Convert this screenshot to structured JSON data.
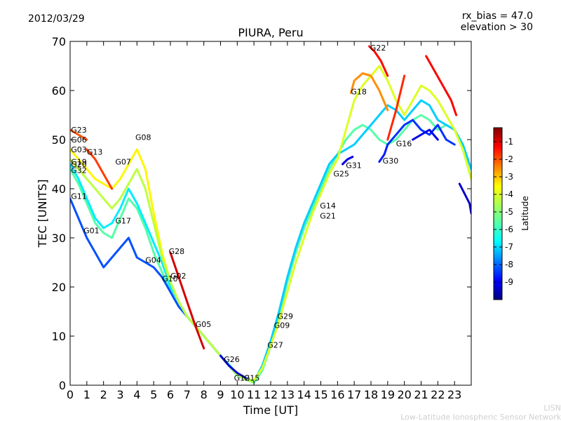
{
  "header": {
    "date": "2012/03/29",
    "rx_bias": "rx_bias = 47.0",
    "elevation": "elevation > 30"
  },
  "watermark": {
    "line1": "LISN",
    "line2": "Low-Latitude Ionospheric Sensor Network"
  },
  "chart_data": {
    "type": "scatter",
    "title": "PIURA, Peru",
    "xlabel": "Time [UT]",
    "ylabel": "TEC [UNITS]",
    "xlim": [
      0,
      24
    ],
    "ylim": [
      0,
      70
    ],
    "x_ticks": [
      "0",
      "1",
      "2",
      "3",
      "4",
      "5",
      "6",
      "7",
      "8",
      "9",
      "10",
      "11",
      "12",
      "13",
      "14",
      "15",
      "16",
      "17",
      "18",
      "19",
      "20",
      "21",
      "22",
      "23"
    ],
    "y_ticks": [
      "0",
      "10",
      "20",
      "30",
      "40",
      "50",
      "60",
      "70"
    ],
    "colorbar": {
      "label": "Latitude",
      "range": [
        -10,
        -0.2
      ],
      "ticks": [
        "-1",
        "-2",
        "-3",
        "-4",
        "-5",
        "-6",
        "-7",
        "-8",
        "-9"
      ],
      "colormap": [
        "#00007f",
        "#0000ff",
        "#007fff",
        "#00ffff",
        "#7fff7f",
        "#ffff00",
        "#ff7f00",
        "#ff0000",
        "#7f0000"
      ]
    },
    "satellite_labels": [
      {
        "name": "G23",
        "x": 0.05,
        "y": 52
      },
      {
        "name": "G06",
        "x": 0.05,
        "y": 50
      },
      {
        "name": "G03",
        "x": 0.05,
        "y": 48
      },
      {
        "name": "G13",
        "x": 1.0,
        "y": 47.5
      },
      {
        "name": "G19",
        "x": 0.05,
        "y": 45.5
      },
      {
        "name": "G20",
        "x": 0.05,
        "y": 45
      },
      {
        "name": "G32",
        "x": 0.05,
        "y": 43.8
      },
      {
        "name": "G11",
        "x": 0.05,
        "y": 38.5
      },
      {
        "name": "G01",
        "x": 0.8,
        "y": 31.5
      },
      {
        "name": "G07",
        "x": 2.7,
        "y": 45.5
      },
      {
        "name": "G08",
        "x": 3.9,
        "y": 50.5
      },
      {
        "name": "G17",
        "x": 2.7,
        "y": 33.5
      },
      {
        "name": "G04",
        "x": 4.5,
        "y": 25.5
      },
      {
        "name": "G28",
        "x": 5.9,
        "y": 27.3
      },
      {
        "name": "G02",
        "x": 6.0,
        "y": 22.3
      },
      {
        "name": "G10",
        "x": 5.5,
        "y": 21.7
      },
      {
        "name": "G05",
        "x": 7.5,
        "y": 12.4
      },
      {
        "name": "G26",
        "x": 9.2,
        "y": 5.3
      },
      {
        "name": "G12",
        "x": 9.8,
        "y": 1.5
      },
      {
        "name": "G15",
        "x": 10.4,
        "y": 1.5
      },
      {
        "name": "G27",
        "x": 11.8,
        "y": 8.2
      },
      {
        "name": "G09",
        "x": 12.2,
        "y": 12.2
      },
      {
        "name": "G29",
        "x": 12.4,
        "y": 14.1
      },
      {
        "name": "G21",
        "x": 14.95,
        "y": 34.5
      },
      {
        "name": "G14",
        "x": 14.95,
        "y": 36.6
      },
      {
        "name": "G25",
        "x": 15.75,
        "y": 43.1
      },
      {
        "name": "G31",
        "x": 16.5,
        "y": 44.8
      },
      {
        "name": "G18",
        "x": 16.8,
        "y": 59.8
      },
      {
        "name": "G22",
        "x": 17.95,
        "y": 68.7
      },
      {
        "name": "G30",
        "x": 18.7,
        "y": 45.7
      },
      {
        "name": "G16",
        "x": 19.5,
        "y": 49.2
      }
    ],
    "series": [
      {
        "lat": -5.5,
        "x": [
          0,
          0.5,
          1,
          1.5,
          2,
          2.5,
          3,
          3.5,
          4,
          4.5,
          5,
          5.5,
          6,
          6.5,
          7,
          7.5,
          8,
          8.5,
          9,
          9.5,
          10,
          10.5,
          11
        ],
        "y": [
          44,
          41,
          37,
          33,
          31,
          30,
          34,
          38,
          36,
          32,
          27,
          23,
          19,
          16,
          14,
          12,
          10,
          8,
          6,
          4,
          2,
          1.2,
          0.5
        ]
      },
      {
        "lat": -3.8,
        "x": [
          0,
          0.5,
          1,
          1.5,
          2,
          2.5,
          3,
          3.5,
          4,
          4.5,
          5,
          5.5,
          6,
          6.5,
          7,
          7.5,
          8,
          8.5,
          9,
          9.5,
          10,
          10.5,
          11
        ],
        "y": [
          48,
          46,
          44,
          42,
          41,
          40,
          42,
          45,
          48,
          44,
          35,
          27,
          21,
          17,
          14,
          12,
          10,
          8,
          6,
          4,
          2.5,
          1.5,
          0.8
        ]
      },
      {
        "lat": -8.0,
        "x": [
          0,
          0.5,
          1,
          1.5,
          2,
          2.5,
          3,
          3.5,
          4,
          4.5,
          5,
          5.5,
          6,
          6.5,
          7,
          7.5,
          8,
          8.5,
          9,
          9.5,
          10,
          10.5,
          11
        ],
        "y": [
          38,
          34,
          30,
          27,
          24,
          26,
          28,
          30,
          26,
          25,
          24,
          22,
          19,
          16,
          14,
          12,
          10,
          8,
          6,
          4,
          2.2,
          1.4,
          0.6
        ]
      },
      {
        "lat": -6.5,
        "x": [
          0,
          0.5,
          1,
          1.5,
          2,
          2.5,
          3,
          3.5,
          4,
          4.5,
          5,
          5.5,
          6,
          6.5,
          7,
          7.5,
          8,
          8.5,
          9,
          9.5,
          10,
          10.5,
          11
        ],
        "y": [
          45,
          42,
          38,
          34,
          32,
          33,
          36,
          40,
          37,
          33,
          29,
          25,
          20,
          17,
          14,
          12,
          10,
          8,
          6,
          4.2,
          2.3,
          1.3,
          0.7
        ]
      },
      {
        "lat": -4.5,
        "x": [
          0,
          0.5,
          1,
          1.5,
          2,
          2.5,
          3,
          3.5,
          4,
          4.5,
          5,
          5.5,
          6,
          6.5,
          7,
          7.5,
          8,
          8.5,
          9,
          9.5,
          10,
          10.5,
          11
        ],
        "y": [
          46,
          44,
          42,
          40,
          38,
          36,
          38,
          41,
          44,
          40,
          33,
          26,
          21,
          17,
          14,
          12,
          10,
          8,
          6,
          4,
          2.2,
          1.2,
          0.6
        ]
      },
      {
        "lat": -2.0,
        "x": [
          1,
          1.5,
          2,
          2.5
        ],
        "y": [
          48,
          46,
          43,
          40
        ]
      },
      {
        "lat": -2.2,
        "x": [
          0,
          0.5,
          1
        ],
        "y": [
          52,
          51,
          50
        ]
      },
      {
        "lat": -1.0,
        "x": [
          6.0,
          6.5,
          7,
          7.5,
          8
        ],
        "y": [
          27,
          22,
          17,
          12,
          7.5
        ]
      },
      {
        "lat": -9.2,
        "x": [
          9.0,
          9.5,
          10,
          10.5
        ],
        "y": [
          6,
          4,
          2.5,
          1.5
        ]
      },
      {
        "lat": -5.5,
        "x": [
          11,
          11.5,
          12,
          12.5,
          13,
          13.5,
          14,
          14.5,
          15,
          15.5,
          16,
          16.5,
          17,
          17.5,
          18,
          18.5,
          19,
          19.5,
          20,
          20.5,
          21,
          21.5,
          22,
          22.5,
          23,
          23.5,
          24
        ],
        "y": [
          0.5,
          3,
          8,
          14,
          21,
          27,
          32,
          36,
          40,
          44,
          47,
          50,
          52,
          53,
          52,
          50,
          49,
          50,
          52,
          54,
          55,
          54,
          52,
          53,
          52,
          48,
          42
        ]
      },
      {
        "lat": -6.8,
        "x": [
          11,
          11.5,
          12,
          12.5,
          13,
          13.5,
          14,
          14.5,
          15,
          15.5,
          16,
          16.5,
          17,
          17.5,
          18,
          18.5,
          19,
          19.5,
          20,
          20.5,
          21,
          21.5,
          22,
          22.5,
          23,
          23.5,
          24
        ],
        "y": [
          0.8,
          4,
          9,
          15,
          22,
          28,
          33,
          37,
          41,
          45,
          47,
          48,
          49,
          51,
          53,
          55,
          57,
          56,
          54,
          56,
          58,
          57,
          54,
          53,
          52,
          49,
          44
        ]
      },
      {
        "lat": -4.2,
        "x": [
          11,
          11.5,
          12,
          12.5,
          13,
          13.5,
          14,
          14.5,
          15,
          15.5,
          16,
          16.5,
          17,
          17.5,
          18,
          18.5,
          19,
          19.5,
          20,
          20.5,
          21,
          21.5,
          22,
          22.5,
          23,
          23.5,
          24
        ],
        "y": [
          1.0,
          3.5,
          8,
          13,
          19,
          25,
          30,
          35,
          39,
          43,
          46,
          52,
          58,
          61,
          63,
          65,
          62,
          58,
          55,
          58,
          61,
          60,
          58,
          55,
          52,
          48,
          42
        ]
      },
      {
        "lat": -2.8,
        "x": [
          16.8,
          17,
          17.5,
          18,
          18.5,
          19
        ],
        "y": [
          59.5,
          62,
          63.5,
          63,
          60,
          56
        ]
      },
      {
        "lat": -1.5,
        "x": [
          17.9,
          18.2,
          18.6,
          19
        ],
        "y": [
          69,
          68,
          66,
          63
        ]
      },
      {
        "lat": -1.8,
        "x": [
          19,
          19.5,
          20
        ],
        "y": [
          50,
          56,
          63
        ]
      },
      {
        "lat": -8.3,
        "x": [
          19,
          19.5,
          20,
          20.5,
          21,
          21.5,
          22,
          22.5,
          23
        ],
        "y": [
          49,
          51,
          53,
          54,
          52,
          51,
          53,
          50,
          49
        ]
      },
      {
        "lat": -9.0,
        "x": [
          20.5,
          21,
          21.5,
          22
        ],
        "y": [
          50,
          51,
          52,
          50
        ]
      },
      {
        "lat": -1.4,
        "x": [
          21.3,
          21.8,
          22.3,
          22.8,
          23.1
        ],
        "y": [
          67,
          64,
          61,
          58,
          55
        ]
      },
      {
        "lat": -9.3,
        "x": [
          23.3,
          23.6,
          23.9,
          24
        ],
        "y": [
          41,
          39,
          37,
          35
        ]
      },
      {
        "lat": -8.5,
        "x": [
          18.5,
          18.8,
          19
        ],
        "y": [
          45.5,
          47,
          49
        ]
      },
      {
        "lat": -9.0,
        "x": [
          16.3,
          16.6,
          16.9
        ],
        "y": [
          45,
          46,
          46.5
        ]
      }
    ]
  }
}
